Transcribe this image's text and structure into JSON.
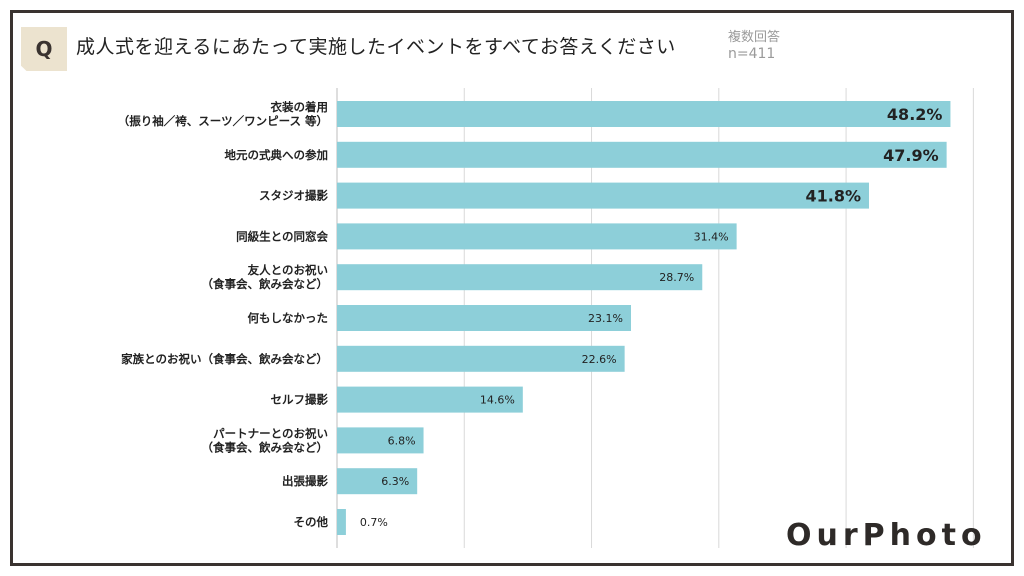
{
  "question": {
    "badge": "Q",
    "text": "成人式を迎えるにあたって実施したイベントをすべてお答えください",
    "note_line1": "複数回答",
    "note_line2": "n=411"
  },
  "brand": {
    "logo_text": "OurPhoto"
  },
  "colors": {
    "bar": "#8dcfd9",
    "grid": "#d9d9d9",
    "frame": "#3a3330",
    "badge_bg": "#ece3cf"
  },
  "chart_data": {
    "type": "bar",
    "orientation": "horizontal",
    "title": "成人式を迎えるにあたって実施したイベントをすべてお答えください",
    "xlim": [
      0,
      50
    ],
    "grid": true,
    "value_suffix": "%",
    "categories": [
      [
        "衣装の着用",
        "（振り袖／袴、スーツ／ワンピース 等）"
      ],
      [
        "地元の式典への参加"
      ],
      [
        "スタジオ撮影"
      ],
      [
        "同級生との同窓会"
      ],
      [
        "友人とのお祝い",
        "（食事会、飲み会など）"
      ],
      [
        "何もしなかった"
      ],
      [
        "家族とのお祝い（食事会、飲み会など）"
      ],
      [
        "セルフ撮影"
      ],
      [
        "パートナーとのお祝い",
        "（食事会、飲み会など）"
      ],
      [
        "出張撮影"
      ],
      [
        "その他"
      ]
    ],
    "values": [
      48.2,
      47.9,
      41.8,
      31.4,
      28.7,
      23.1,
      22.6,
      14.6,
      6.8,
      6.3,
      0.7
    ],
    "value_labels": [
      "48.2%",
      "47.9%",
      "41.8%",
      "31.4%",
      "28.7%",
      "23.1%",
      "22.6%",
      "14.6%",
      "6.8%",
      "6.3%",
      "0.7%"
    ]
  }
}
